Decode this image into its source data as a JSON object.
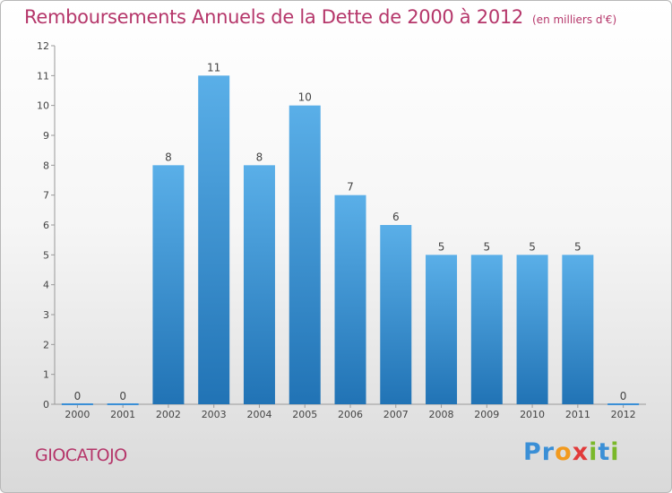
{
  "title": "Remboursements Annuels de la Dette de 2000 à 2012",
  "subtitle": "(en milliers d'€)",
  "commune": "GIOCATOJO",
  "logo": {
    "letters": [
      {
        "char": "P",
        "color": "#3a8fd6"
      },
      {
        "char": "r",
        "color": "#3a8fd6"
      },
      {
        "char": "o",
        "color": "#f29a1e"
      },
      {
        "char": "x",
        "color": "#e13a3a"
      },
      {
        "char": "i",
        "color": "#7ab82a"
      },
      {
        "char": "t",
        "color": "#3a8fd6"
      },
      {
        "char": "i",
        "color": "#7ab82a"
      }
    ]
  },
  "colors": {
    "title": "#b5366a",
    "bar_light": "#5aafe8",
    "bar_dark": "#2173b5"
  },
  "chart_data": {
    "type": "bar",
    "categories": [
      "2000",
      "2001",
      "2002",
      "2003",
      "2004",
      "2005",
      "2006",
      "2007",
      "2008",
      "2009",
      "2010",
      "2011",
      "2012"
    ],
    "values": [
      0,
      0,
      8,
      11,
      8,
      10,
      7,
      6,
      5,
      5,
      5,
      5,
      0
    ],
    "ylim": [
      0,
      12
    ],
    "yticks": [
      "0",
      "1",
      "2",
      "3",
      "4",
      "5",
      "6",
      "7",
      "8",
      "9",
      "10",
      "11",
      "12"
    ],
    "grid": false,
    "legend": "none"
  }
}
